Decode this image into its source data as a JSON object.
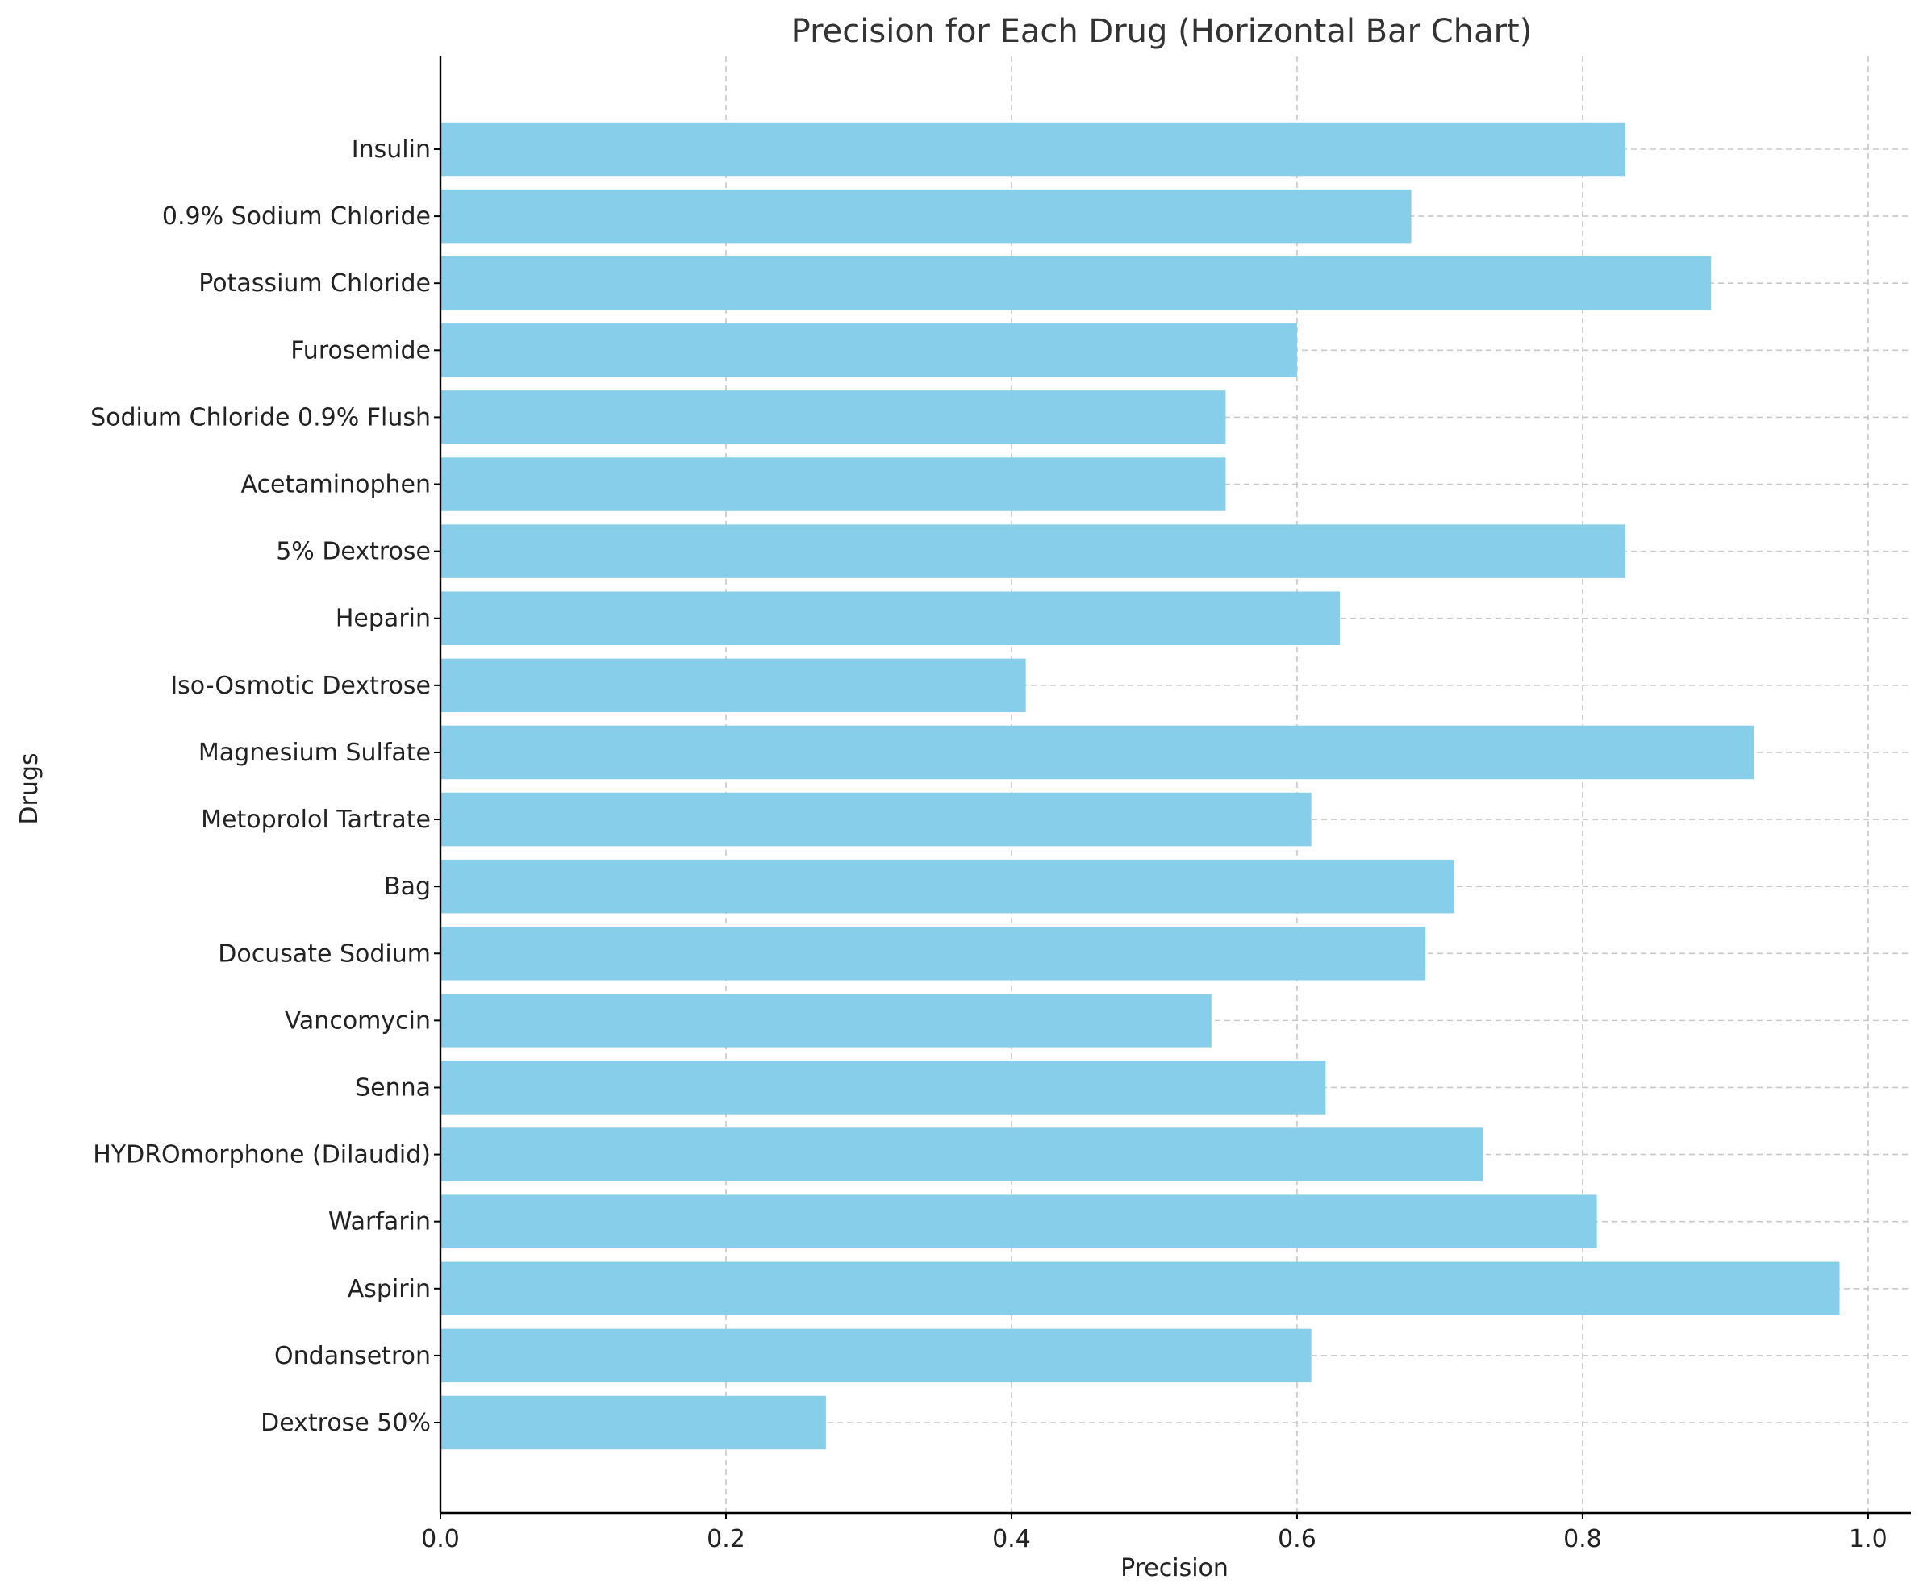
{
  "chart_data": {
    "type": "bar",
    "orientation": "horizontal",
    "title": "Precision for Each Drug (Horizontal Bar Chart)",
    "xlabel": "Precision",
    "ylabel": "Drugs",
    "xlim": [
      0,
      1.03
    ],
    "xticks": [
      "0.0",
      "0.2",
      "0.4",
      "0.6",
      "0.8",
      "1.0"
    ],
    "grid": true,
    "bar_color": "#87ceeb",
    "categories": [
      "Dextrose 50%",
      "Ondansetron",
      "Aspirin",
      "Warfarin",
      "HYDROmorphone (Dilaudid)",
      "Senna",
      "Vancomycin",
      "Docusate Sodium",
      "Bag",
      "Metoprolol Tartrate",
      "Magnesium Sulfate",
      "Iso-Osmotic Dextrose",
      "Heparin",
      "5% Dextrose",
      "Acetaminophen",
      "Sodium Chloride 0.9% Flush",
      "Furosemide",
      "Potassium Chloride",
      "0.9% Sodium Chloride",
      "Insulin"
    ],
    "values": [
      0.27,
      0.61,
      0.98,
      0.81,
      0.73,
      0.62,
      0.54,
      0.69,
      0.71,
      0.61,
      0.92,
      0.41,
      0.63,
      0.83,
      0.55,
      0.55,
      0.6,
      0.89,
      0.68,
      0.83
    ]
  }
}
